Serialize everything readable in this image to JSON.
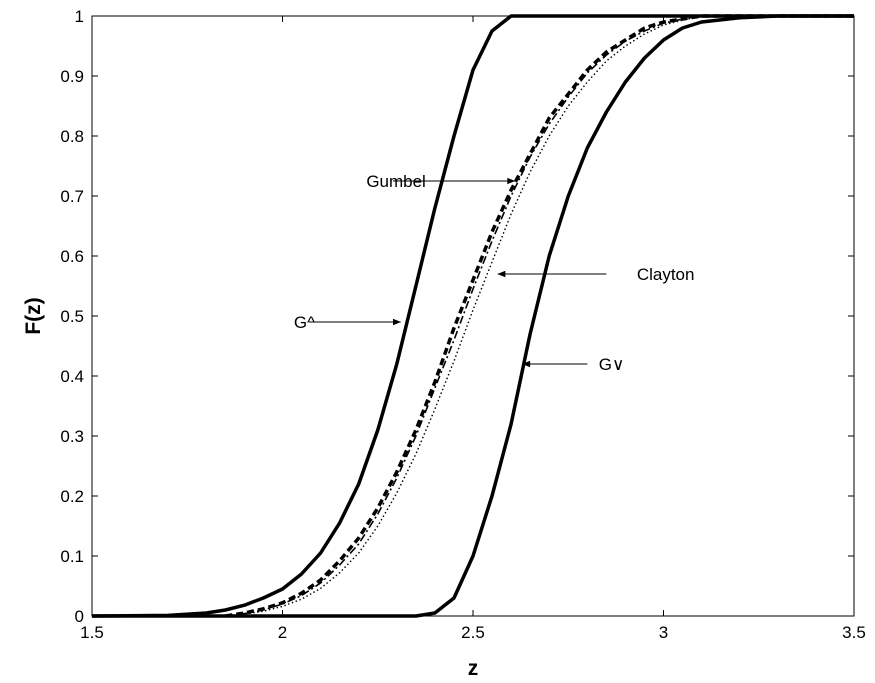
{
  "chart_data": {
    "type": "line",
    "title": "",
    "xlabel": "z",
    "ylabel": "F(z)",
    "xlim": [
      1.5,
      3.5
    ],
    "ylim": [
      0,
      1
    ],
    "xticks": [
      "1.5",
      "2",
      "2.5",
      "3",
      "3.5"
    ],
    "yticks": [
      "0",
      "0.1",
      "0.2",
      "0.3",
      "0.4",
      "0.5",
      "0.6",
      "0.7",
      "0.8",
      "0.9",
      "1"
    ],
    "grid": false,
    "legend": "none",
    "series": [
      {
        "style": "solid-thick",
        "points": [
          [
            1.5,
            0
          ],
          [
            1.7,
            0.001
          ],
          [
            1.8,
            0.005
          ],
          [
            1.85,
            0.01
          ],
          [
            1.9,
            0.018
          ],
          [
            1.95,
            0.03
          ],
          [
            2.0,
            0.045
          ],
          [
            2.05,
            0.07
          ],
          [
            2.1,
            0.105
          ],
          [
            2.15,
            0.155
          ],
          [
            2.2,
            0.22
          ],
          [
            2.25,
            0.31
          ],
          [
            2.3,
            0.42
          ],
          [
            2.35,
            0.55
          ],
          [
            2.4,
            0.68
          ],
          [
            2.45,
            0.8
          ],
          [
            2.5,
            0.91
          ],
          [
            2.55,
            0.975
          ],
          [
            2.6,
            1.0
          ],
          [
            3.5,
            1.0
          ]
        ]
      },
      {
        "style": "solid-thick",
        "points": [
          [
            1.5,
            0
          ],
          [
            2.35,
            0
          ],
          [
            2.4,
            0.005
          ],
          [
            2.45,
            0.03
          ],
          [
            2.5,
            0.1
          ],
          [
            2.55,
            0.2
          ],
          [
            2.6,
            0.32
          ],
          [
            2.65,
            0.47
          ],
          [
            2.7,
            0.6
          ],
          [
            2.75,
            0.7
          ],
          [
            2.8,
            0.78
          ],
          [
            2.85,
            0.84
          ],
          [
            2.9,
            0.89
          ],
          [
            2.95,
            0.93
          ],
          [
            3.0,
            0.96
          ],
          [
            3.05,
            0.98
          ],
          [
            3.1,
            0.99
          ],
          [
            3.2,
            0.997
          ],
          [
            3.3,
            1.0
          ],
          [
            3.5,
            1.0
          ]
        ]
      },
      {
        "style": "dashed-thick",
        "points": [
          [
            1.85,
            0
          ],
          [
            1.9,
            0.005
          ],
          [
            1.95,
            0.012
          ],
          [
            2.0,
            0.022
          ],
          [
            2.05,
            0.038
          ],
          [
            2.1,
            0.06
          ],
          [
            2.15,
            0.092
          ],
          [
            2.2,
            0.13
          ],
          [
            2.25,
            0.18
          ],
          [
            2.3,
            0.24
          ],
          [
            2.35,
            0.31
          ],
          [
            2.4,
            0.39
          ],
          [
            2.45,
            0.48
          ],
          [
            2.5,
            0.56
          ],
          [
            2.55,
            0.64
          ],
          [
            2.6,
            0.71
          ],
          [
            2.65,
            0.77
          ],
          [
            2.7,
            0.83
          ],
          [
            2.75,
            0.87
          ],
          [
            2.8,
            0.91
          ],
          [
            2.85,
            0.94
          ],
          [
            2.9,
            0.96
          ],
          [
            2.95,
            0.98
          ],
          [
            3.0,
            0.99
          ],
          [
            3.05,
            0.995
          ],
          [
            3.1,
            1.0
          ],
          [
            3.5,
            1.0
          ]
        ]
      },
      {
        "style": "dashdot",
        "points": [
          [
            1.85,
            0
          ],
          [
            1.9,
            0.004
          ],
          [
            1.95,
            0.01
          ],
          [
            2.0,
            0.02
          ],
          [
            2.05,
            0.034
          ],
          [
            2.1,
            0.055
          ],
          [
            2.15,
            0.085
          ],
          [
            2.2,
            0.12
          ],
          [
            2.25,
            0.17
          ],
          [
            2.3,
            0.23
          ],
          [
            2.35,
            0.3
          ],
          [
            2.4,
            0.38
          ],
          [
            2.45,
            0.46
          ],
          [
            2.5,
            0.545
          ],
          [
            2.55,
            0.625
          ],
          [
            2.6,
            0.7
          ],
          [
            2.65,
            0.765
          ],
          [
            2.7,
            0.82
          ],
          [
            2.75,
            0.865
          ],
          [
            2.8,
            0.905
          ],
          [
            2.85,
            0.935
          ],
          [
            2.9,
            0.958
          ],
          [
            2.95,
            0.975
          ],
          [
            3.0,
            0.988
          ],
          [
            3.05,
            0.995
          ],
          [
            3.1,
            1.0
          ],
          [
            3.5,
            1.0
          ]
        ]
      },
      {
        "style": "dotted",
        "points": [
          [
            1.85,
            0
          ],
          [
            1.9,
            0.003
          ],
          [
            1.95,
            0.008
          ],
          [
            2.0,
            0.016
          ],
          [
            2.05,
            0.028
          ],
          [
            2.1,
            0.046
          ],
          [
            2.15,
            0.072
          ],
          [
            2.2,
            0.105
          ],
          [
            2.25,
            0.15
          ],
          [
            2.3,
            0.205
          ],
          [
            2.35,
            0.27
          ],
          [
            2.4,
            0.345
          ],
          [
            2.45,
            0.425
          ],
          [
            2.5,
            0.51
          ],
          [
            2.55,
            0.59
          ],
          [
            2.6,
            0.67
          ],
          [
            2.65,
            0.74
          ],
          [
            2.7,
            0.8
          ],
          [
            2.75,
            0.85
          ],
          [
            2.8,
            0.89
          ],
          [
            2.85,
            0.925
          ],
          [
            2.9,
            0.95
          ],
          [
            2.95,
            0.97
          ],
          [
            3.0,
            0.985
          ],
          [
            3.05,
            0.993
          ],
          [
            3.1,
            1.0
          ],
          [
            3.5,
            1.0
          ]
        ]
      }
    ],
    "annotations": [
      {
        "text": "Gumbel",
        "text_at": [
          2.22,
          0.725
        ],
        "arrow_from": [
          2.29,
          0.725
        ],
        "arrow_to": [
          2.61,
          0.725
        ]
      },
      {
        "text": "Clayton",
        "text_at": [
          2.93,
          0.57
        ],
        "arrow_from": [
          2.85,
          0.57
        ],
        "arrow_to": [
          2.565,
          0.57
        ]
      },
      {
        "text": "G^",
        "text_at": [
          2.03,
          0.49
        ],
        "arrow_from": [
          2.07,
          0.49
        ],
        "arrow_to": [
          2.31,
          0.49
        ]
      },
      {
        "text": "G∨",
        "text_at": [
          2.83,
          0.42
        ],
        "arrow_from": [
          2.8,
          0.42
        ],
        "arrow_to": [
          2.63,
          0.42
        ]
      }
    ]
  }
}
